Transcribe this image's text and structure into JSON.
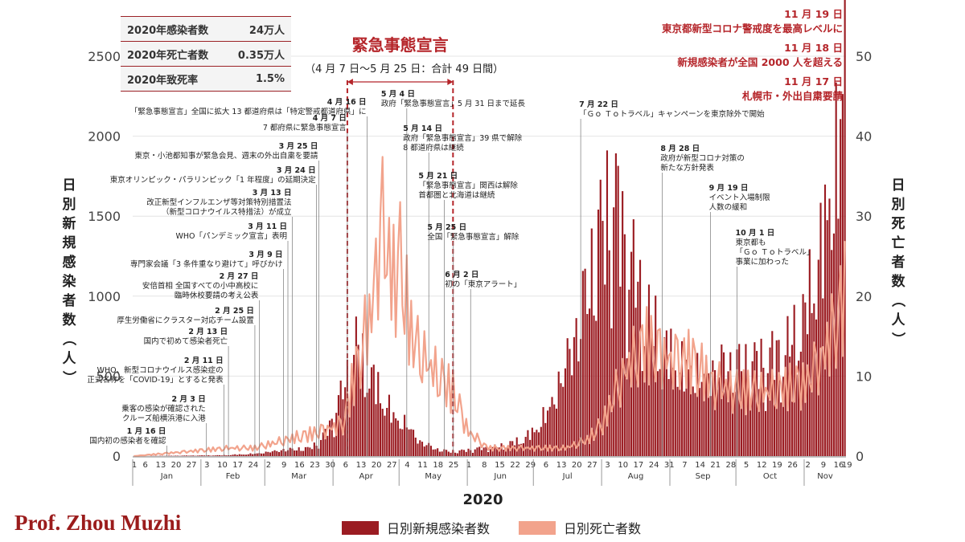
{
  "summary": [
    {
      "label": "2020年感染者数",
      "value": "24万人"
    },
    {
      "label": "2020年死亡者数",
      "value": "0.35万人"
    },
    {
      "label": "2020年致死率",
      "value": "1.5%"
    }
  ],
  "credit": "Prof. Zhou Muzhi",
  "colors": {
    "cases": "#9b1c22",
    "deaths": "#f2a38c",
    "accent": "#b5252a"
  },
  "chart_data": {
    "type": "bar",
    "title": "",
    "xlabel": "2020",
    "ylabel": "日別新規感染者数（人）",
    "y2label": "日別死亡者数（人）",
    "ylim": [
      0,
      2500
    ],
    "y2lim": [
      0,
      50
    ],
    "yticks": [
      "0",
      "500",
      "1000",
      "1500",
      "2000",
      "2500"
    ],
    "y2ticks": [
      "0",
      "10",
      "20",
      "30",
      "40",
      "50"
    ],
    "month_labels": [
      "Jan",
      "Feb",
      "Mar",
      "Apr",
      "May",
      "Jun",
      "Jul",
      "Aug",
      "Sep",
      "Oct",
      "Nov"
    ],
    "x_start": "2020-01-01",
    "x_end": "2020-11-19",
    "xtick_labels": [
      {
        "date": "2020-01-01",
        "label": "1"
      },
      {
        "date": "2020-01-06",
        "label": "6"
      },
      {
        "date": "2020-01-13",
        "label": "13"
      },
      {
        "date": "2020-01-20",
        "label": "20"
      },
      {
        "date": "2020-01-27",
        "label": "27"
      },
      {
        "date": "2020-02-03",
        "label": "3"
      },
      {
        "date": "2020-02-10",
        "label": "10"
      },
      {
        "date": "2020-02-17",
        "label": "17"
      },
      {
        "date": "2020-02-24",
        "label": "24"
      },
      {
        "date": "2020-03-02",
        "label": "2"
      },
      {
        "date": "2020-03-09",
        "label": "9"
      },
      {
        "date": "2020-03-16",
        "label": "16"
      },
      {
        "date": "2020-03-23",
        "label": "23"
      },
      {
        "date": "2020-03-30",
        "label": "30"
      },
      {
        "date": "2020-04-06",
        "label": "6"
      },
      {
        "date": "2020-04-13",
        "label": "13"
      },
      {
        "date": "2020-04-20",
        "label": "20"
      },
      {
        "date": "2020-04-27",
        "label": "27"
      },
      {
        "date": "2020-05-04",
        "label": "4"
      },
      {
        "date": "2020-05-11",
        "label": "11"
      },
      {
        "date": "2020-05-18",
        "label": "18"
      },
      {
        "date": "2020-05-25",
        "label": "25"
      },
      {
        "date": "2020-06-01",
        "label": "1"
      },
      {
        "date": "2020-06-08",
        "label": "8"
      },
      {
        "date": "2020-06-15",
        "label": "15"
      },
      {
        "date": "2020-06-22",
        "label": "22"
      },
      {
        "date": "2020-06-29",
        "label": "29"
      },
      {
        "date": "2020-07-06",
        "label": "6"
      },
      {
        "date": "2020-07-13",
        "label": "13"
      },
      {
        "date": "2020-07-20",
        "label": "20"
      },
      {
        "date": "2020-07-27",
        "label": "27"
      },
      {
        "date": "2020-08-03",
        "label": "3"
      },
      {
        "date": "2020-08-10",
        "label": "10"
      },
      {
        "date": "2020-08-17",
        "label": "17"
      },
      {
        "date": "2020-08-24",
        "label": "24"
      },
      {
        "date": "2020-08-31",
        "label": "31"
      },
      {
        "date": "2020-09-07",
        "label": "7"
      },
      {
        "date": "2020-09-14",
        "label": "14"
      },
      {
        "date": "2020-09-21",
        "label": "21"
      },
      {
        "date": "2020-09-28",
        "label": "28"
      },
      {
        "date": "2020-10-05",
        "label": "5"
      },
      {
        "date": "2020-10-12",
        "label": "12"
      },
      {
        "date": "2020-10-19",
        "label": "19"
      },
      {
        "date": "2020-10-26",
        "label": "26"
      },
      {
        "date": "2020-11-02",
        "label": "2"
      },
      {
        "date": "2020-11-09",
        "label": "9"
      },
      {
        "date": "2020-11-16",
        "label": "16"
      },
      {
        "date": "2020-11-19",
        "label": "19"
      }
    ],
    "series": [
      {
        "name": "日別新規感染者数",
        "kind": "bar",
        "axis": "left",
        "keyframes": [
          {
            "date": "2020-01-01",
            "value": 0
          },
          {
            "date": "2020-02-10",
            "value": 5
          },
          {
            "date": "2020-02-25",
            "value": 15
          },
          {
            "date": "2020-03-10",
            "value": 40
          },
          {
            "date": "2020-03-20",
            "value": 45
          },
          {
            "date": "2020-03-26",
            "value": 90
          },
          {
            "date": "2020-04-01",
            "value": 250
          },
          {
            "date": "2020-04-06",
            "value": 450
          },
          {
            "date": "2020-04-11",
            "value": 700
          },
          {
            "date": "2020-04-14",
            "value": 600
          },
          {
            "date": "2020-04-18",
            "value": 500
          },
          {
            "date": "2020-04-22",
            "value": 400
          },
          {
            "date": "2020-04-28",
            "value": 250
          },
          {
            "date": "2020-05-04",
            "value": 200
          },
          {
            "date": "2020-05-10",
            "value": 90
          },
          {
            "date": "2020-05-18",
            "value": 40
          },
          {
            "date": "2020-05-25",
            "value": 25
          },
          {
            "date": "2020-06-05",
            "value": 45
          },
          {
            "date": "2020-06-15",
            "value": 60
          },
          {
            "date": "2020-06-25",
            "value": 100
          },
          {
            "date": "2020-07-01",
            "value": 160
          },
          {
            "date": "2020-07-08",
            "value": 300
          },
          {
            "date": "2020-07-15",
            "value": 550
          },
          {
            "date": "2020-07-22",
            "value": 850
          },
          {
            "date": "2020-07-29",
            "value": 1250
          },
          {
            "date": "2020-08-03",
            "value": 1500
          },
          {
            "date": "2020-08-07",
            "value": 1550
          },
          {
            "date": "2020-08-14",
            "value": 1200
          },
          {
            "date": "2020-08-21",
            "value": 900
          },
          {
            "date": "2020-08-28",
            "value": 700
          },
          {
            "date": "2020-09-07",
            "value": 550
          },
          {
            "date": "2020-09-15",
            "value": 500
          },
          {
            "date": "2020-09-25",
            "value": 550
          },
          {
            "date": "2020-10-05",
            "value": 550
          },
          {
            "date": "2020-10-15",
            "value": 600
          },
          {
            "date": "2020-10-25",
            "value": 700
          },
          {
            "date": "2020-11-01",
            "value": 900
          },
          {
            "date": "2020-11-08",
            "value": 1300
          },
          {
            "date": "2020-11-14",
            "value": 1700
          },
          {
            "date": "2020-11-18",
            "value": 2200
          },
          {
            "date": "2020-11-19",
            "value": 2400
          }
        ]
      },
      {
        "name": "日別死亡者数",
        "kind": "line",
        "axis": "right",
        "keyframes": [
          {
            "date": "2020-01-01",
            "value": 0
          },
          {
            "date": "2020-02-13",
            "value": 1
          },
          {
            "date": "2020-02-25",
            "value": 1
          },
          {
            "date": "2020-03-10",
            "value": 2
          },
          {
            "date": "2020-03-25",
            "value": 3
          },
          {
            "date": "2020-04-05",
            "value": 4
          },
          {
            "date": "2020-04-12",
            "value": 12
          },
          {
            "date": "2020-04-18",
            "value": 18
          },
          {
            "date": "2020-04-22",
            "value": 29
          },
          {
            "date": "2020-04-28",
            "value": 22
          },
          {
            "date": "2020-05-01",
            "value": 24
          },
          {
            "date": "2020-05-06",
            "value": 15
          },
          {
            "date": "2020-05-12",
            "value": 12
          },
          {
            "date": "2020-05-18",
            "value": 10
          },
          {
            "date": "2020-05-25",
            "value": 8
          },
          {
            "date": "2020-06-01",
            "value": 3
          },
          {
            "date": "2020-06-10",
            "value": 1
          },
          {
            "date": "2020-06-20",
            "value": 1
          },
          {
            "date": "2020-07-01",
            "value": 1
          },
          {
            "date": "2020-07-15",
            "value": 1
          },
          {
            "date": "2020-07-25",
            "value": 2
          },
          {
            "date": "2020-08-01",
            "value": 4
          },
          {
            "date": "2020-08-10",
            "value": 10
          },
          {
            "date": "2020-08-20",
            "value": 14
          },
          {
            "date": "2020-08-31",
            "value": 12
          },
          {
            "date": "2020-09-10",
            "value": 12
          },
          {
            "date": "2020-09-20",
            "value": 9
          },
          {
            "date": "2020-10-01",
            "value": 8
          },
          {
            "date": "2020-10-15",
            "value": 8
          },
          {
            "date": "2020-11-01",
            "value": 9
          },
          {
            "date": "2020-11-10",
            "value": 13
          },
          {
            "date": "2020-11-19",
            "value": 20
          }
        ]
      }
    ],
    "emergency": {
      "title": "緊急事態宣言",
      "subtitle": "（4 月 7 日〜5 月 25 日：合計 49 日間）",
      "start": "2020-04-07",
      "end": "2020-05-25"
    },
    "annotations": [
      {
        "date": "2020-01-16",
        "title": "1 月 16 日",
        "lines": [
          "国内初の感染者を確認"
        ]
      },
      {
        "date": "2020-02-03",
        "title": "2 月 3 日",
        "lines": [
          "乗客の感染が確認された",
          "クルーズ船横浜港に入港"
        ]
      },
      {
        "date": "2020-02-11",
        "title": "2 月 11 日",
        "lines": [
          "WHO、新型コロナウイルス感染症の",
          "正式名称を「COVID-19」とすると発表"
        ]
      },
      {
        "date": "2020-02-13",
        "title": "2 月 13 日",
        "lines": [
          "国内で初めて感染者死亡"
        ]
      },
      {
        "date": "2020-02-25",
        "title": "2 月 25 日",
        "lines": [
          "厚生労働省にクラスター対応チーム設置"
        ]
      },
      {
        "date": "2020-02-27",
        "title": "2 月 27 日",
        "lines": [
          "安倍首相 全国すべての小中高校に",
          "臨時休校要請の考え公表"
        ]
      },
      {
        "date": "2020-03-09",
        "title": "3 月 9 日",
        "lines": [
          "専門家会議「3 条件重なり避けて」呼びかけ"
        ]
      },
      {
        "date": "2020-03-11",
        "title": "3 月 11 日",
        "lines": [
          "WHO「パンデミック宣言」表明"
        ]
      },
      {
        "date": "2020-03-13",
        "title": "3 月 13 日",
        "lines": [
          "改正新型インフルエンザ等対策特別措置法",
          "（新型コロナウイルス特措法）が成立"
        ]
      },
      {
        "date": "2020-03-24",
        "title": "3 月 24 日",
        "lines": [
          "東京オリンピック・パラリンピック「1 年程度」の延期決定"
        ]
      },
      {
        "date": "2020-03-25",
        "title": "3 月 25 日",
        "lines": [
          "東京・小池都知事が緊急会見、週末の外出自粛を要請"
        ]
      },
      {
        "date": "2020-04-07",
        "title": "4 月 7 日",
        "lines": [
          "7 都府県に緊急事態宣言"
        ]
      },
      {
        "date": "2020-04-16",
        "title": "4 月 16 日",
        "lines": [
          "「緊急事態宣言」全国に拡大 13 都道府県は「特定警戒都道府県」に"
        ]
      },
      {
        "date": "2020-05-04",
        "title": "5 月 4 日",
        "lines": [
          "政府「緊急事態宣言」5 月 31 日まで延長"
        ]
      },
      {
        "date": "2020-05-14",
        "title": "5 月 14 日",
        "lines": [
          "政府「緊急事態宣言」39 県で解除",
          "8 都道府県は継続"
        ]
      },
      {
        "date": "2020-05-21",
        "title": "5 月 21 日",
        "lines": [
          "「緊急事態宣言」関西は解除",
          "首都圏と北海道は継続"
        ]
      },
      {
        "date": "2020-05-25",
        "title": "5 月 25 日",
        "lines": [
          "全国「緊急事態宣言」解除"
        ]
      },
      {
        "date": "2020-06-02",
        "title": "6 月 2 日",
        "lines": [
          "初の「東京アラート」"
        ]
      },
      {
        "date": "2020-07-22",
        "title": "7 月 22 日",
        "lines": [
          "「Ｇｏ Ｔｏトラベル」キャンペーンを東京除外で開始"
        ]
      },
      {
        "date": "2020-08-28",
        "title": "8 月 28 日",
        "lines": [
          "政府が新型コロナ対策の",
          "新たな方針発表"
        ]
      },
      {
        "date": "2020-09-19",
        "title": "9 月 19 日",
        "lines": [
          "イベント入場制限",
          "人数の緩和"
        ]
      },
      {
        "date": "2020-10-01",
        "title": "10 月 1 日",
        "lines": [
          "東京都も",
          "「Ｇｏ Ｔｏトラベル」",
          "事業に加わった"
        ]
      }
    ],
    "red_annotations": [
      {
        "date": "2020-11-19",
        "title": "11 月 19 日",
        "text": "東京都新型コロナ警戒度を最高レベルに"
      },
      {
        "date": "2020-11-18",
        "title": "11 月 18 日",
        "text": "新規感染者が全国 2000 人を超える"
      },
      {
        "date": "2020-11-17",
        "title": "11 月 17 日",
        "text": "札幌市・外出自粛要請"
      }
    ]
  }
}
